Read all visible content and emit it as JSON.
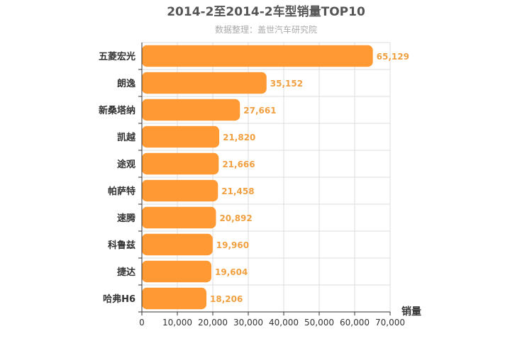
{
  "chart_data": {
    "type": "bar",
    "orientation": "horizontal",
    "title": "2014-2至2014-2车型销量TOP10",
    "subtitle": "数据整理：盖世汽车研究院",
    "xlabel": "销量",
    "ylabel": "",
    "xlim": [
      0,
      70000
    ],
    "x_ticks": [
      "0",
      "10,000",
      "20,000",
      "30,000",
      "40,000",
      "50,000",
      "60,000",
      "70,000"
    ],
    "grid": true,
    "categories": [
      "五菱宏光",
      "朗逸",
      "新桑塔纳",
      "凯越",
      "途观",
      "帕萨特",
      "速腾",
      "科鲁兹",
      "捷达",
      "哈弗H6"
    ],
    "values": [
      65129,
      35152,
      27661,
      21820,
      21666,
      21458,
      20892,
      19960,
      19604,
      18206
    ],
    "value_labels": [
      "65,129",
      "35,152",
      "27,661",
      "21,820",
      "21,666",
      "21,458",
      "20,892",
      "19,960",
      "19,604",
      "18,206"
    ],
    "bar_color": "#ff9933",
    "label_color": "#f0a040"
  }
}
